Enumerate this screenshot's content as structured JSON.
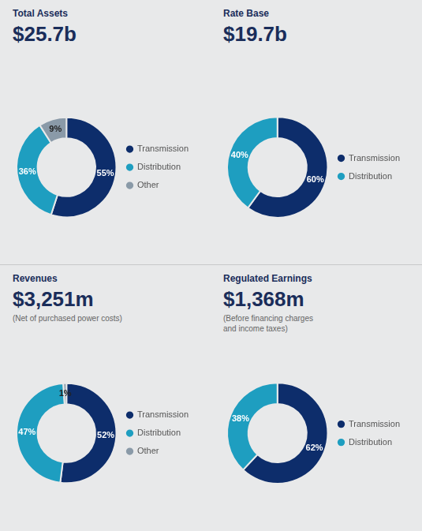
{
  "chart_data": [
    {
      "type": "doughnut",
      "title": "Total Assets",
      "subtitle": "$25.7b",
      "categories": [
        "Transmission",
        "Distribution",
        "Other"
      ],
      "values": [
        55,
        36,
        9
      ],
      "value_labels": [
        "55%",
        "36%",
        "9%"
      ],
      "colors": [
        "#0d2d6b",
        "#1e9ec0",
        "#8a9aa8"
      ],
      "data_labels": true,
      "legend": "right"
    },
    {
      "type": "doughnut",
      "title": "Rate Base",
      "subtitle": "$19.7b",
      "categories": [
        "Transmission",
        "Distribution"
      ],
      "values": [
        60,
        40
      ],
      "value_labels": [
        "60%",
        "40%"
      ],
      "colors": [
        "#0d2d6b",
        "#1e9ec0"
      ],
      "data_labels": true,
      "legend": "right"
    },
    {
      "type": "doughnut",
      "title": "Revenues",
      "subtitle": "$3,251m",
      "annotations": [
        "(Net of purchased power costs)"
      ],
      "categories": [
        "Transmission",
        "Distribution",
        "Other"
      ],
      "values": [
        52,
        47,
        1
      ],
      "value_labels": [
        "52%",
        "47%",
        "1%"
      ],
      "colors": [
        "#0d2d6b",
        "#1e9ec0",
        "#8a9aa8"
      ],
      "data_labels": true,
      "legend": "right"
    },
    {
      "type": "doughnut",
      "title": "Regulated Earnings",
      "subtitle": "$1,368m",
      "annotations": [
        "(Before financing charges\nand income taxes)"
      ],
      "categories": [
        "Transmission",
        "Distribution"
      ],
      "values": [
        62,
        38
      ],
      "value_labels": [
        "62%",
        "38%"
      ],
      "colors": [
        "#0d2d6b",
        "#1e9ec0"
      ],
      "data_labels": true,
      "legend": "right"
    }
  ]
}
